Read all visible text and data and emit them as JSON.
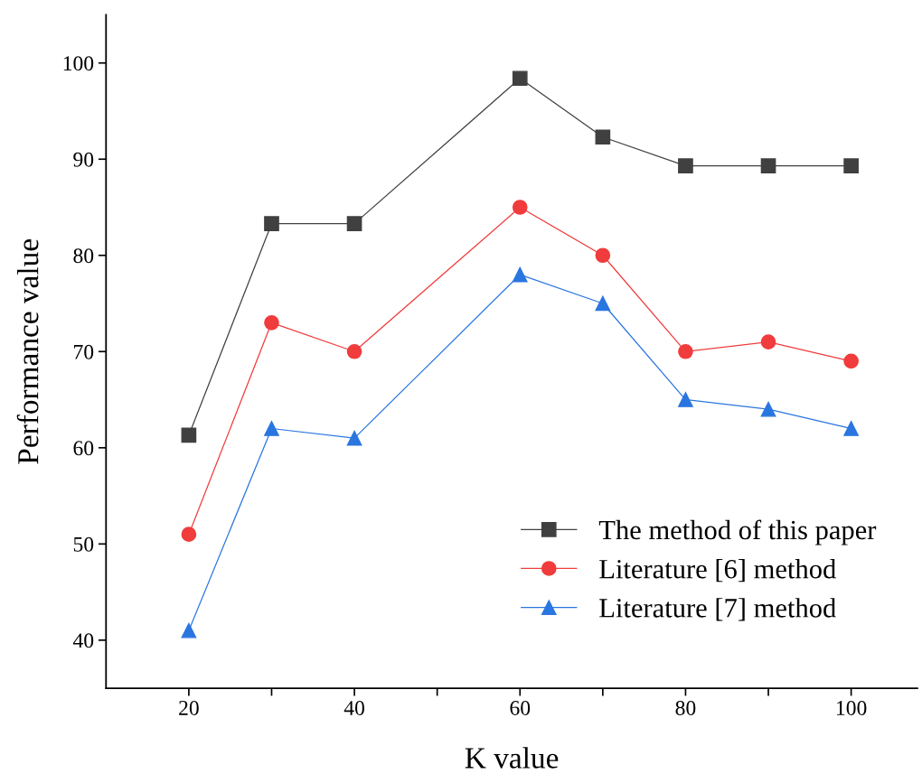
{
  "chart_data": {
    "type": "line",
    "xlabel": "K value",
    "ylabel": "Performance value",
    "x": [
      20,
      30,
      40,
      60,
      70,
      80,
      90,
      100
    ],
    "series": [
      {
        "name": "The method of this paper",
        "color": "#404040",
        "marker": "square",
        "values": [
          61.3,
          83.3,
          83.3,
          98.4,
          92.3,
          89.3,
          89.3,
          89.3
        ]
      },
      {
        "name": "Literature [6] method",
        "color": "#f03c3c",
        "marker": "circle",
        "values": [
          51,
          73,
          70,
          85,
          80,
          70,
          71,
          69
        ]
      },
      {
        "name": "Literature [7] method",
        "color": "#2a76e0",
        "marker": "triangle",
        "values": [
          41,
          62,
          61,
          78,
          75,
          65,
          64,
          62
        ]
      }
    ],
    "xlim": [
      10,
      108
    ],
    "ylim": [
      35,
      105
    ],
    "xticks": [
      20,
      {
        "value": 30,
        "label": null
      },
      40,
      {
        "value": 50,
        "label": null
      },
      60,
      {
        "value": 70,
        "label": null
      },
      80,
      {
        "value": 90,
        "label": null
      },
      100
    ],
    "yticks": [
      40,
      50,
      60,
      70,
      80,
      90,
      100
    ],
    "grid": false,
    "legend": "lower right",
    "line_style": "solid"
  }
}
